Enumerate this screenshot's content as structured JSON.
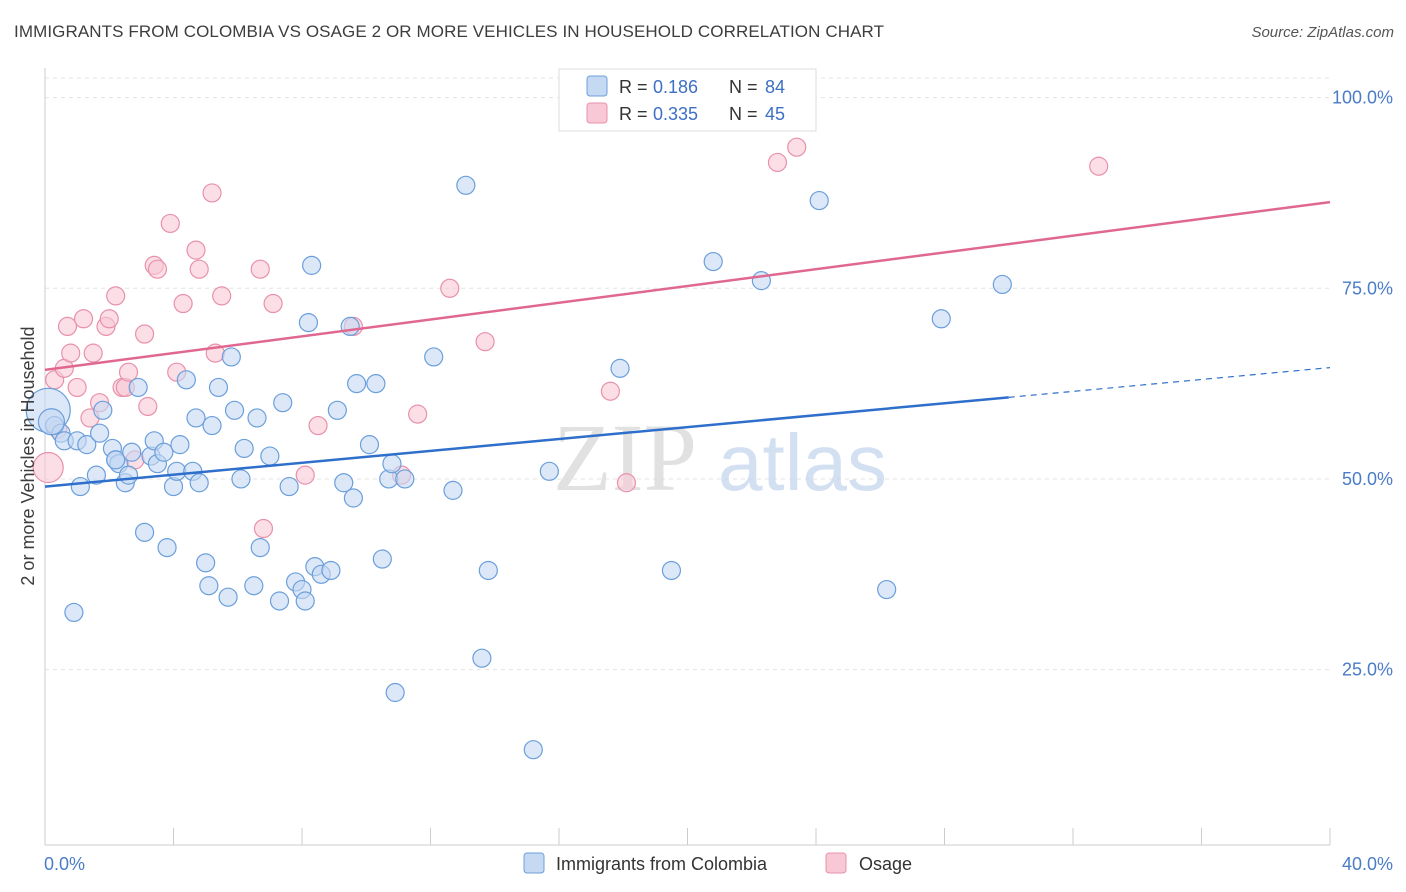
{
  "title": "IMMIGRANTS FROM COLOMBIA VS OSAGE 2 OR MORE VEHICLES IN HOUSEHOLD CORRELATION CHART",
  "source": "Source: ZipAtlas.com",
  "watermark": {
    "zip": "ZIP",
    "atlas": "atlas"
  },
  "colors": {
    "blue_fill": "#c5d9f3",
    "blue_stroke": "#6b9fdb",
    "blue_line": "#2f6fcc",
    "pink_fill": "#f8c8d6",
    "pink_stroke": "#e891ab",
    "pink_line": "#e06890",
    "tick_color": "#4a7cc7"
  },
  "legend": {
    "rows": [
      {
        "r_label": "R =",
        "r_value": "0.186",
        "n_label": "N =",
        "n_value": "84"
      },
      {
        "r_label": "R =",
        "r_value": "0.335",
        "n_label": "N =",
        "n_value": "45"
      }
    ]
  },
  "chart_data": {
    "type": "scatter",
    "title": "IMMIGRANTS FROM COLOMBIA VS OSAGE 2 OR MORE VEHICLES IN HOUSEHOLD CORRELATION CHART",
    "xlabel": "",
    "ylabel": "2 or more Vehicles in Household",
    "xlim": [
      0,
      40
    ],
    "ylim": [
      0,
      105
    ],
    "x_tick_labels": [
      "0.0%",
      "40.0%"
    ],
    "y_ticks": [
      25,
      50,
      75,
      100
    ],
    "y_tick_labels": [
      "25.0%",
      "50.0%",
      "75.0%",
      "100.0%"
    ],
    "grid": true,
    "legend_position": "top-center",
    "series": [
      {
        "name": "Immigrants from Colombia",
        "color": "#6b9fdb",
        "trend": {
          "x": [
            0,
            30
          ],
          "y": [
            49.0,
            60.7
          ],
          "dashed_to": [
            40,
            64.6
          ]
        },
        "points": [
          [
            0.1,
            59
          ],
          [
            0.3,
            57
          ],
          [
            0.5,
            56
          ],
          [
            0.6,
            55
          ],
          [
            0.9,
            32.5
          ],
          [
            1.0,
            55
          ],
          [
            1.1,
            49
          ],
          [
            1.3,
            54.5
          ],
          [
            1.6,
            50.5
          ],
          [
            1.7,
            56
          ],
          [
            1.8,
            59
          ],
          [
            2.1,
            54
          ],
          [
            2.2,
            52.5
          ],
          [
            2.3,
            52
          ],
          [
            2.5,
            49.5
          ],
          [
            2.6,
            50.5
          ],
          [
            2.7,
            53.5
          ],
          [
            2.9,
            62
          ],
          [
            3.1,
            43
          ],
          [
            3.3,
            53
          ],
          [
            3.4,
            55
          ],
          [
            3.5,
            52
          ],
          [
            3.7,
            53.5
          ],
          [
            3.8,
            41
          ],
          [
            4.0,
            49
          ],
          [
            4.1,
            51
          ],
          [
            4.2,
            54.5
          ],
          [
            4.4,
            63
          ],
          [
            4.6,
            51
          ],
          [
            4.7,
            58
          ],
          [
            4.8,
            49.5
          ],
          [
            5.0,
            39
          ],
          [
            5.1,
            36
          ],
          [
            5.2,
            57
          ],
          [
            5.4,
            62
          ],
          [
            5.7,
            34.5
          ],
          [
            5.8,
            66
          ],
          [
            5.9,
            59
          ],
          [
            6.1,
            50
          ],
          [
            6.2,
            54
          ],
          [
            6.5,
            36
          ],
          [
            6.6,
            58
          ],
          [
            6.7,
            41
          ],
          [
            7.0,
            53
          ],
          [
            7.3,
            34
          ],
          [
            7.4,
            60
          ],
          [
            7.6,
            49
          ],
          [
            7.8,
            36.5
          ],
          [
            8.0,
            35.5
          ],
          [
            8.1,
            34
          ],
          [
            8.2,
            70.5
          ],
          [
            8.3,
            78
          ],
          [
            8.4,
            38.5
          ],
          [
            8.6,
            37.5
          ],
          [
            8.9,
            38
          ],
          [
            9.1,
            59
          ],
          [
            9.3,
            49.5
          ],
          [
            9.5,
            70
          ],
          [
            9.6,
            47.5
          ],
          [
            9.7,
            62.5
          ],
          [
            10.1,
            54.5
          ],
          [
            10.3,
            62.5
          ],
          [
            10.5,
            39.5
          ],
          [
            10.7,
            50
          ],
          [
            10.8,
            52
          ],
          [
            10.9,
            22
          ],
          [
            11.2,
            50
          ],
          [
            12.1,
            66
          ],
          [
            12.7,
            48.5
          ],
          [
            13.1,
            88.5
          ],
          [
            13.6,
            26.5
          ],
          [
            13.8,
            38
          ],
          [
            15.2,
            14.5
          ],
          [
            15.7,
            51
          ],
          [
            17.9,
            64.5
          ],
          [
            19.5,
            38
          ],
          [
            20.8,
            78.5
          ],
          [
            22.3,
            76
          ],
          [
            24.1,
            86.5
          ],
          [
            26.2,
            35.5
          ],
          [
            27.9,
            71
          ],
          [
            29.8,
            75.5
          ],
          [
            0.2,
            57.5
          ],
          [
            2.2,
            52.5
          ]
        ]
      },
      {
        "name": "Osage",
        "color": "#e891ab",
        "trend": {
          "x": [
            0,
            40
          ],
          "y": [
            64.3,
            86.3
          ]
        },
        "points": [
          [
            0.1,
            51.5
          ],
          [
            0.3,
            63
          ],
          [
            0.4,
            56.5
          ],
          [
            0.6,
            64.5
          ],
          [
            0.7,
            70
          ],
          [
            0.8,
            66.5
          ],
          [
            1.0,
            62
          ],
          [
            1.2,
            71
          ],
          [
            1.4,
            58
          ],
          [
            1.5,
            66.5
          ],
          [
            1.7,
            60
          ],
          [
            1.9,
            70
          ],
          [
            2.0,
            71
          ],
          [
            2.2,
            74
          ],
          [
            2.4,
            62
          ],
          [
            2.5,
            62
          ],
          [
            2.6,
            64
          ],
          [
            2.8,
            52.5
          ],
          [
            3.1,
            69
          ],
          [
            3.2,
            59.5
          ],
          [
            3.4,
            78
          ],
          [
            3.5,
            77.5
          ],
          [
            3.9,
            83.5
          ],
          [
            4.1,
            64
          ],
          [
            4.3,
            73
          ],
          [
            4.7,
            80
          ],
          [
            4.8,
            77.5
          ],
          [
            5.2,
            87.5
          ],
          [
            5.3,
            66.5
          ],
          [
            5.5,
            74
          ],
          [
            6.7,
            77.5
          ],
          [
            6.8,
            43.5
          ],
          [
            7.1,
            73
          ],
          [
            8.1,
            50.5
          ],
          [
            8.5,
            57
          ],
          [
            9.6,
            70
          ],
          [
            11.1,
            50.5
          ],
          [
            11.6,
            58.5
          ],
          [
            12.6,
            75
          ],
          [
            13.7,
            68
          ],
          [
            17.6,
            61.5
          ],
          [
            18.1,
            49.5
          ],
          [
            22.8,
            91.5
          ],
          [
            23.4,
            93.5
          ],
          [
            32.8,
            91
          ]
        ]
      }
    ]
  }
}
